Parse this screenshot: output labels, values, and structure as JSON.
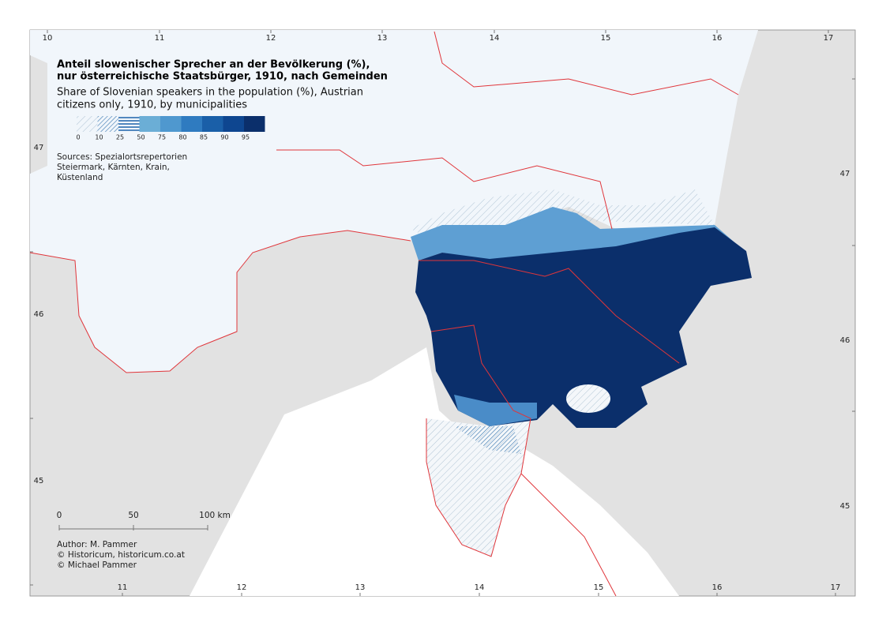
{
  "title": [
    "Anteil slowenischer Sprecher an der Bevölkerung (%),",
    "nur österreichische Staatsbürger, 1910, nach Gemeinden"
  ],
  "subtitle": [
    "Share of Slovenian speakers in the population (%), Austrian",
    "citizens only, 1910, by municipalities"
  ],
  "legend": {
    "labels": [
      0,
      10,
      25,
      50,
      75,
      80,
      85,
      90,
      95
    ]
  },
  "sources": [
    "Sources: Spezialortsrepertorien",
    "Steiermark, Kärnten, Krain,",
    "Küstenland"
  ],
  "scale_bar": {
    "labels": [
      "0",
      "50",
      "100 km"
    ]
  },
  "credits": [
    "Author: M. Pammer",
    "© Historicum, historicum.co.at",
    "© Michael Pammer"
  ],
  "graticule": {
    "top": [
      10,
      11,
      12,
      13,
      14,
      15,
      16,
      17
    ],
    "bottom": [
      11,
      12,
      13,
      14,
      15,
      16,
      17
    ],
    "left": [
      47,
      46,
      45
    ],
    "right": [
      47,
      46,
      45
    ]
  }
}
